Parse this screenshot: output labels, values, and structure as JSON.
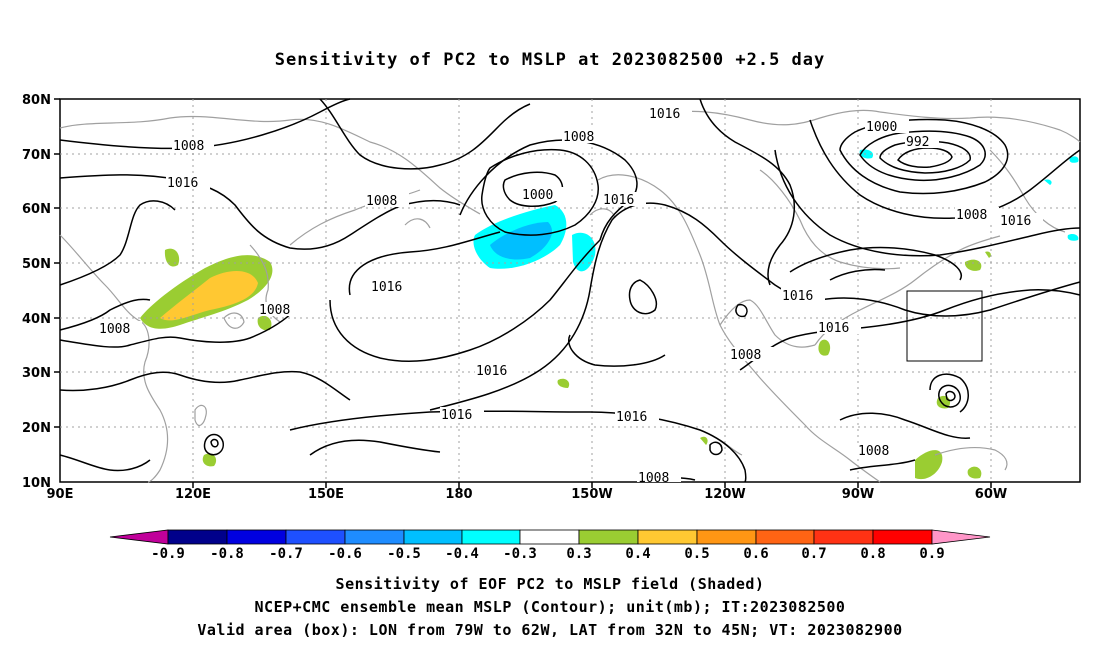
{
  "title": "Sensitivity of PC2 to MSLP at 2023082500 +2.5 day",
  "map": {
    "lat_labels": [
      "80N",
      "70N",
      "60N",
      "50N",
      "40N",
      "30N",
      "20N",
      "10N"
    ],
    "lon_labels": [
      "90E",
      "120E",
      "150E",
      "180",
      "150W",
      "120W",
      "90W",
      "60W"
    ],
    "contour_labels": [
      "1008",
      "1016",
      "1008",
      "1016",
      "1000",
      "1008",
      "1016",
      "1016",
      "1000",
      "992",
      "1008",
      "1016",
      "1008",
      "1016",
      "1016",
      "1016",
      "1016",
      "1016",
      "1008",
      "1008",
      "1008",
      "1008"
    ],
    "colors": {
      "contour": "#000000",
      "coast": "#a0a0a0",
      "grid": "#a0a0a0",
      "box": "#000000"
    }
  },
  "colorbar": {
    "labels": [
      "-0.9",
      "-0.8",
      "-0.7",
      "-0.6",
      "-0.5",
      "-0.4",
      "-0.3",
      "0.3",
      "0.4",
      "0.5",
      "0.6",
      "0.7",
      "0.8",
      "0.9"
    ],
    "colors": [
      "#c0009a",
      "#00008b",
      "#0000e0",
      "#1e50ff",
      "#1e8cff",
      "#00bfff",
      "#00ffff",
      "#ffffff",
      "#9acd32",
      "#ffc832",
      "#ff9614",
      "#ff6414",
      "#ff3214",
      "#ff0000",
      "#ff96c8"
    ]
  },
  "captions": [
    "Sensitivity of EOF PC2 to MSLP field (Shaded)",
    "NCEP+CMC ensemble mean MSLP (Contour); unit(mb); IT:2023082500",
    "Valid area (box): LON from 79W to 62W, LAT from 32N to 45N; VT: 2023082900"
  ]
}
